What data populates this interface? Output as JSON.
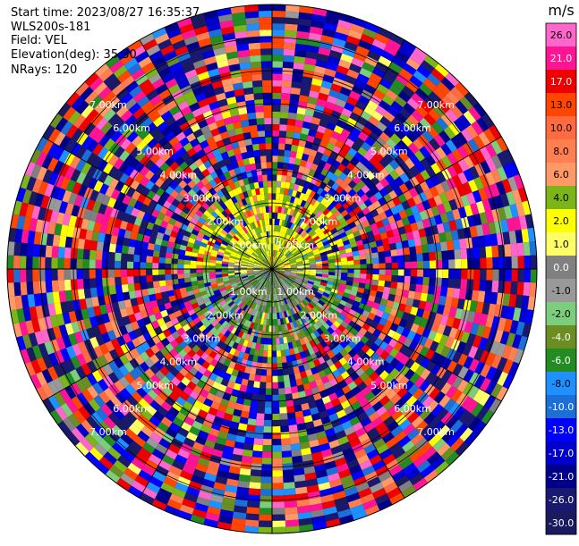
{
  "header": {
    "start_time": "Start time: 2023/08/27 16:35:37",
    "instrument": "WLS200s-181",
    "field": "Field: VEL",
    "elevation": "Elevation(deg): 35.30",
    "nrays": "NRays: 120"
  },
  "chart_data": {
    "type": "heatmap",
    "projection": "polar (PPI scan)",
    "title": "",
    "n_rays": 120,
    "range_rings_km": [
      1.0,
      2.0,
      3.0,
      4.0,
      5.0,
      6.0,
      7.0
    ],
    "range_ring_labels": [
      "1.00km",
      "2.00km",
      "3.00km",
      "4.00km",
      "5.00km",
      "6.00km",
      "7.00km"
    ],
    "spokes_deg": [
      0,
      30,
      60,
      90,
      120,
      150,
      180,
      210,
      240,
      270,
      300,
      330
    ],
    "max_range_km": 8.0,
    "colorbar": {
      "unit": "m/s",
      "tick_labels": [
        "26.0",
        "21.0",
        "17.0",
        "13.0",
        "10.0",
        "8.0",
        "6.0",
        "4.0",
        "2.0",
        "1.0",
        "0.0",
        "-1.0",
        "-2.0",
        "-4.0",
        "-6.0",
        "-8.0",
        "-10.0",
        "-13.0",
        "-17.0",
        "-21.0",
        "-26.0",
        "-30.0"
      ],
      "colors": [
        "#ff66cc",
        "#ff1493",
        "#ee0000",
        "#ff4500",
        "#ff6a40",
        "#ff7f50",
        "#ff9966",
        "#7cb518",
        "#ffff00",
        "#ffff66",
        "#808080",
        "#999999",
        "#7ccd7c",
        "#6b8e23",
        "#228b22",
        "#1e90ff",
        "#1c6fd6",
        "#0000ff",
        "#0000cd",
        "#00008b",
        "#191970",
        "#1a1a5e"
      ]
    },
    "field_description": {
      "inner_region_km": 1.4,
      "north_half_near": "yellow (+1 to +4 m/s)",
      "south_half_near": "gray/green (0 to -6 m/s)",
      "outer_region": "noisy mix of all colors"
    }
  }
}
